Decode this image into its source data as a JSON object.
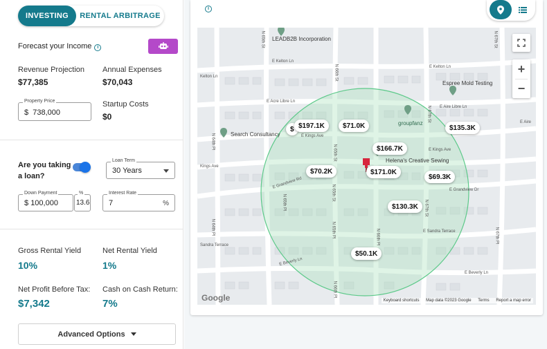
{
  "mode_toggle": {
    "active": "INVESTING",
    "inactive": "RENTAL ARBITRAGE"
  },
  "forecast": {
    "title": "Forecast your Income",
    "info_icon": "info-icon",
    "ai_button_icon": "robot-icon"
  },
  "summary": {
    "revenue_label": "Revenue Projection",
    "revenue_value": "$77,385",
    "expenses_label": "Annual Expenses",
    "expenses_value": "$70,043",
    "startup_label": "Startup Costs",
    "startup_value": "$0"
  },
  "property_price": {
    "label": "Property Price",
    "prefix": "$",
    "value": "738,000"
  },
  "loan": {
    "question_line1": "Are you taking",
    "question_line2": "a loan?",
    "enabled": true,
    "term_label": "Loan Term",
    "term_value": "30 Years",
    "down_label": "Down Payment",
    "down_prefix": "$",
    "down_value": "100,000",
    "pct_label": "%",
    "pct_value": "13.6",
    "rate_label": "Interest Rate",
    "rate_value": "7",
    "rate_suffix": "%"
  },
  "results": {
    "gross_label": "Gross Rental Yield",
    "gross_value": "10%",
    "net_label": "Net Rental Yield",
    "net_value": "1%",
    "profit_label": "Net Profit Before Tax:",
    "profit_value": "$7,342",
    "coc_label": "Cash on Cash Return:",
    "coc_value": "7%"
  },
  "advanced_button": "Advanced Options",
  "view_toggle": {
    "map_icon": "map-pin-icon",
    "list_icon": "list-icon",
    "active": "map"
  },
  "map": {
    "streets": [
      "N 65th St",
      "N 67th St",
      "E Kelton Ln",
      "Kelton Ln",
      "E Kelton Ln",
      "N 66th St",
      "E Acre Libre Ln",
      "E Aire Libre Ln",
      "N 67th St",
      "N 64th Pl",
      "E Kings Ave",
      "E Kings Ave",
      "Kings Ave",
      "N 65th St",
      "E Grandview Rd",
      "N 65th Pl",
      "N 65th St",
      "E Grandview Dr",
      "N 67th St",
      "E Sandra Terrace",
      "N 64th Pl",
      "Sandra Terrace",
      "N 65th Pl",
      "N 66th Pl",
      "E Beverly Ln",
      "E Beverly Ln",
      "N 67th Pl",
      "E Aire",
      "N 66th Pl"
    ],
    "pois": [
      {
        "name": "LEADB2B Incorporation"
      },
      {
        "name": "Espree Mold Testing"
      },
      {
        "name": "groupfanz"
      },
      {
        "name": "Search Consultancy"
      },
      {
        "name": "Helena's Creative Sewing"
      }
    ],
    "price_markers": [
      "$197.1K",
      "$71.0K",
      "$135.3K",
      "$166.7K",
      "$70.2K",
      "$171.0K",
      "$69.3K",
      "$130.3K",
      "$50.1K",
      "$"
    ],
    "attribution": {
      "logo": "Google",
      "shortcuts": "Keyboard shortcuts",
      "data": "Map data ©2023 Google",
      "terms": "Terms",
      "report": "Report a map error"
    },
    "controls": {
      "fullscreen": "fullscreen-icon",
      "zoom_in": "+",
      "zoom_out": "−"
    },
    "accent_circle_color": "#5cc989",
    "pin_color": "#d7263d"
  },
  "colors": {
    "accent": "#147a8c",
    "ai_button": "#b449c9",
    "switch": "#1a73e8"
  }
}
